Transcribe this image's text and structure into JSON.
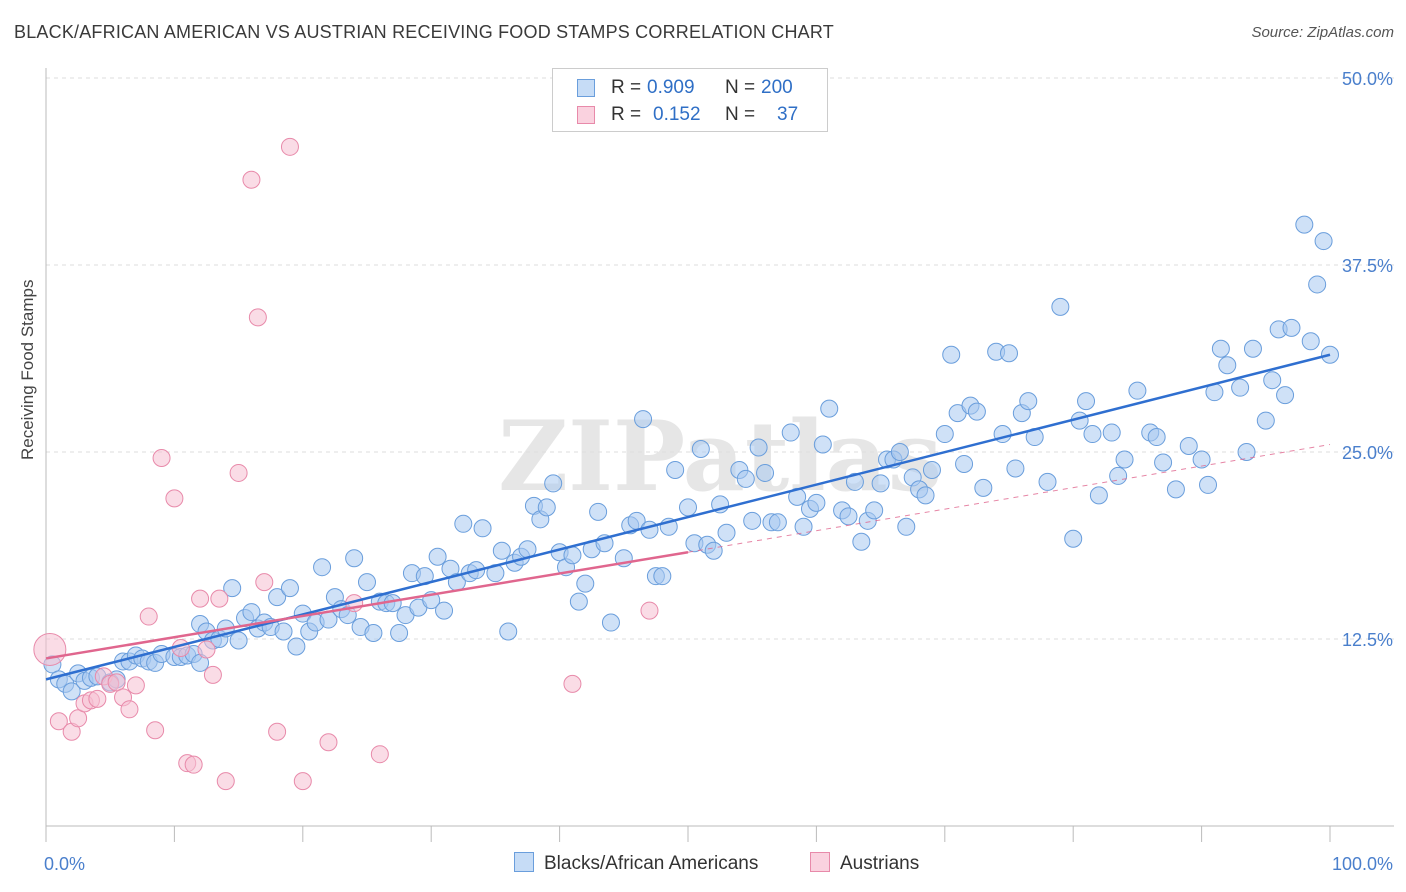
{
  "title": "BLACK/AFRICAN AMERICAN VS AUSTRIAN RECEIVING FOOD STAMPS CORRELATION CHART",
  "source": "Source: ZipAtlas.com",
  "watermark": "ZIPatlas",
  "legend": {
    "r_label": "R =",
    "n_label": "N =",
    "rows": [
      {
        "r": "0.909",
        "n": "200",
        "color": "#a8c8f0",
        "border": "#6a9edc"
      },
      {
        "r": "0.152",
        "n": "37",
        "color": "#f6c0d2",
        "border": "#e88aaa"
      }
    ]
  },
  "bottom_legend": [
    {
      "label": "Blacks/African Americans",
      "color": "#c6dcf6",
      "border": "#6a9edc"
    },
    {
      "label": "Austrians",
      "color": "#fad2df",
      "border": "#e88aaa"
    }
  ],
  "chart_data": {
    "type": "scatter",
    "ylabel": "Receiving Food Stamps",
    "xlim": [
      0,
      100
    ],
    "ylim": [
      0,
      50
    ],
    "x_tick_labels": [
      "0.0%",
      "100.0%"
    ],
    "y_ticks": [
      12.5,
      25.0,
      37.5,
      50.0
    ],
    "y_tick_labels": [
      "12.5%",
      "25.0%",
      "37.5%",
      "50.0%"
    ],
    "grid": true,
    "colors": {
      "blue": "#6a9edc",
      "blue_line": "#2f6fd0",
      "pink": "#e88aaa",
      "pink_line": "#e0668e",
      "axis_text": "#4a7fcc"
    },
    "series": [
      {
        "name": "Blacks/African Americans",
        "trend": {
          "x": [
            0,
            100
          ],
          "y": [
            9.8,
            31.5
          ]
        },
        "points": [
          [
            0.5,
            10.8
          ],
          [
            1,
            9.8
          ],
          [
            1.5,
            9.5
          ],
          [
            2,
            9
          ],
          [
            2.5,
            10.2
          ],
          [
            3,
            9.7
          ],
          [
            3.5,
            9.9
          ],
          [
            4,
            10
          ],
          [
            5,
            9.6
          ],
          [
            5.5,
            9.8
          ],
          [
            6,
            11
          ],
          [
            6.5,
            11
          ],
          [
            7,
            11.4
          ],
          [
            7.5,
            11.2
          ],
          [
            8,
            11
          ],
          [
            8.5,
            10.9
          ],
          [
            9,
            11.5
          ],
          [
            10,
            11.3
          ],
          [
            10.5,
            11.3
          ],
          [
            11,
            11.4
          ],
          [
            11.5,
            11.5
          ],
          [
            12,
            10.9
          ],
          [
            12,
            13.5
          ],
          [
            12.5,
            13
          ],
          [
            13,
            12.4
          ],
          [
            13.5,
            12.5
          ],
          [
            14,
            13.2
          ],
          [
            14.5,
            15.9
          ],
          [
            15,
            12.4
          ],
          [
            15.5,
            13.9
          ],
          [
            16,
            14.3
          ],
          [
            16.5,
            13.2
          ],
          [
            17,
            13.6
          ],
          [
            17.5,
            13.3
          ],
          [
            18,
            15.3
          ],
          [
            18.5,
            13
          ],
          [
            19,
            15.9
          ],
          [
            19.5,
            12
          ],
          [
            20,
            14.2
          ],
          [
            20.5,
            13
          ],
          [
            21,
            13.6
          ],
          [
            21.5,
            17.3
          ],
          [
            22,
            13.8
          ],
          [
            22.5,
            15.3
          ],
          [
            23,
            14.5
          ],
          [
            23.5,
            14.1
          ],
          [
            24,
            17.9
          ],
          [
            24.5,
            13.3
          ],
          [
            25,
            16.3
          ],
          [
            25.5,
            12.9
          ],
          [
            26,
            15
          ],
          [
            26.5,
            14.9
          ],
          [
            27,
            14.9
          ],
          [
            27.5,
            12.9
          ],
          [
            28,
            14.1
          ],
          [
            28.5,
            16.9
          ],
          [
            29,
            14.6
          ],
          [
            29.5,
            16.7
          ],
          [
            30,
            15.1
          ],
          [
            30.5,
            18
          ],
          [
            31,
            14.4
          ],
          [
            31.5,
            17.2
          ],
          [
            32,
            16.3
          ],
          [
            32.5,
            20.2
          ],
          [
            33,
            16.9
          ],
          [
            33.5,
            17.1
          ],
          [
            34,
            19.9
          ],
          [
            35,
            16.9
          ],
          [
            35.5,
            18.4
          ],
          [
            36,
            13
          ],
          [
            36.5,
            17.6
          ],
          [
            37,
            18
          ],
          [
            37.5,
            18.5
          ],
          [
            38,
            21.4
          ],
          [
            38.5,
            20.5
          ],
          [
            39,
            21.3
          ],
          [
            39.5,
            22.9
          ],
          [
            40,
            18.3
          ],
          [
            40.5,
            17.3
          ],
          [
            41,
            18.1
          ],
          [
            41.5,
            15
          ],
          [
            42,
            16.2
          ],
          [
            42.5,
            18.5
          ],
          [
            43,
            21
          ],
          [
            43.5,
            18.9
          ],
          [
            44,
            13.6
          ],
          [
            45,
            17.9
          ],
          [
            45.5,
            20.1
          ],
          [
            46,
            20.4
          ],
          [
            46.5,
            27.2
          ],
          [
            47,
            19.8
          ],
          [
            47.5,
            16.7
          ],
          [
            48,
            16.7
          ],
          [
            48.5,
            20
          ],
          [
            49,
            23.8
          ],
          [
            50,
            21.3
          ],
          [
            50.5,
            18.9
          ],
          [
            51,
            25.2
          ],
          [
            51.5,
            18.8
          ],
          [
            52,
            18.4
          ],
          [
            52.5,
            21.5
          ],
          [
            53,
            19.6
          ],
          [
            54,
            23.8
          ],
          [
            54.5,
            23.2
          ],
          [
            55,
            20.4
          ],
          [
            55.5,
            25.3
          ],
          [
            56,
            23.6
          ],
          [
            56.5,
            20.3
          ],
          [
            57,
            20.3
          ],
          [
            58,
            26.3
          ],
          [
            58.5,
            22
          ],
          [
            59,
            20
          ],
          [
            59.5,
            21.2
          ],
          [
            60,
            21.6
          ],
          [
            60.5,
            25.5
          ],
          [
            61,
            27.9
          ],
          [
            62,
            21.1
          ],
          [
            62.5,
            20.7
          ],
          [
            63,
            23
          ],
          [
            63.5,
            19
          ],
          [
            64,
            20.4
          ],
          [
            64.5,
            21.1
          ],
          [
            65,
            22.9
          ],
          [
            65.5,
            24.5
          ],
          [
            66,
            24.5
          ],
          [
            66.5,
            25
          ],
          [
            67,
            20
          ],
          [
            67.5,
            23.3
          ],
          [
            68,
            22.5
          ],
          [
            68.5,
            22.1
          ],
          [
            69,
            23.8
          ],
          [
            70,
            26.2
          ],
          [
            70.5,
            31.5
          ],
          [
            71,
            27.6
          ],
          [
            71.5,
            24.2
          ],
          [
            72,
            28.1
          ],
          [
            72.5,
            27.7
          ],
          [
            73,
            22.6
          ],
          [
            74,
            31.7
          ],
          [
            74.5,
            26.2
          ],
          [
            75,
            31.6
          ],
          [
            75.5,
            23.9
          ],
          [
            76,
            27.6
          ],
          [
            76.5,
            28.4
          ],
          [
            77,
            26
          ],
          [
            78,
            23
          ],
          [
            79,
            34.7
          ],
          [
            80,
            19.2
          ],
          [
            80.5,
            27.1
          ],
          [
            81,
            28.4
          ],
          [
            81.5,
            26.2
          ],
          [
            82,
            22.1
          ],
          [
            83,
            26.3
          ],
          [
            83.5,
            23.4
          ],
          [
            84,
            24.5
          ],
          [
            85,
            29.1
          ],
          [
            86,
            26.3
          ],
          [
            86.5,
            26
          ],
          [
            87,
            24.3
          ],
          [
            88,
            22.5
          ],
          [
            89,
            25.4
          ],
          [
            90,
            24.5
          ],
          [
            90.5,
            22.8
          ],
          [
            91,
            29
          ],
          [
            91.5,
            31.9
          ],
          [
            92,
            30.8
          ],
          [
            93,
            29.3
          ],
          [
            93.5,
            25
          ],
          [
            94,
            31.9
          ],
          [
            95,
            27.1
          ],
          [
            95.5,
            29.8
          ],
          [
            96,
            33.2
          ],
          [
            96.5,
            28.8
          ],
          [
            97,
            33.3
          ],
          [
            98,
            40.2
          ],
          [
            98.5,
            32.4
          ],
          [
            99,
            36.2
          ],
          [
            99.5,
            39.1
          ],
          [
            100,
            31.5
          ]
        ]
      },
      {
        "name": "Austrians",
        "trend": {
          "x": [
            0,
            50
          ],
          "y": [
            11.2,
            18.3
          ]
        },
        "trend_extension": {
          "x": [
            50,
            100
          ],
          "y": [
            18.3,
            25.5
          ]
        },
        "points": [
          [
            0.3,
            11.8
          ],
          [
            1,
            7
          ],
          [
            2,
            6.3
          ],
          [
            2.5,
            7.2
          ],
          [
            3,
            8.2
          ],
          [
            3.5,
            8.4
          ],
          [
            4,
            8.5
          ],
          [
            4.5,
            10
          ],
          [
            5,
            9.5
          ],
          [
            5.5,
            9.6
          ],
          [
            6,
            8.6
          ],
          [
            6.5,
            7.8
          ],
          [
            7,
            9.4
          ],
          [
            8,
            14
          ],
          [
            8.5,
            6.4
          ],
          [
            9,
            24.6
          ],
          [
            10,
            21.9
          ],
          [
            10.5,
            11.9
          ],
          [
            11,
            4.2
          ],
          [
            11.5,
            4.1
          ],
          [
            12,
            15.2
          ],
          [
            12.5,
            11.8
          ],
          [
            13,
            10.1
          ],
          [
            13.5,
            15.2
          ],
          [
            14,
            3
          ],
          [
            15,
            23.6
          ],
          [
            16,
            43.2
          ],
          [
            16.5,
            34
          ],
          [
            17,
            16.3
          ],
          [
            18,
            6.3
          ],
          [
            19,
            45.4
          ],
          [
            20,
            3
          ],
          [
            22,
            5.6
          ],
          [
            24,
            14.9
          ],
          [
            26,
            4.8
          ],
          [
            41,
            9.5
          ],
          [
            47,
            14.4
          ]
        ]
      }
    ]
  }
}
